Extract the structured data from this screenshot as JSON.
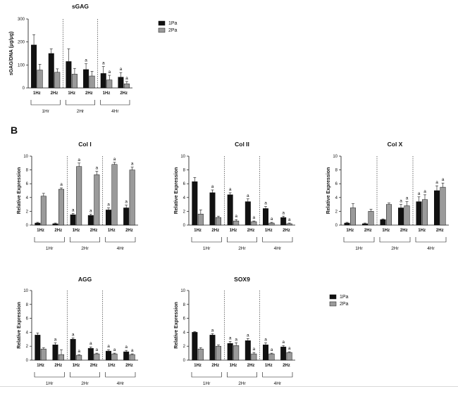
{
  "panel_b_label": "B",
  "legend": [
    {
      "label": "1Pa",
      "color": "#111111"
    },
    {
      "label": "2Pa",
      "color": "#9a9a9a"
    }
  ],
  "chart_data": [
    {
      "id": "sgag",
      "type": "bar",
      "title": "sGAG",
      "ylabel": "sGAG/DNA (μg/μg)",
      "ylim": [
        0,
        300
      ],
      "yticks": [
        0,
        100,
        200,
        300
      ],
      "categories": [
        "1Hz",
        "2Hz",
        "1Hz",
        "2Hz",
        "1Hz",
        "2Hz"
      ],
      "groups": [
        "1Hr",
        "2Hr",
        "4Hr"
      ],
      "series": [
        {
          "name": "1Pa",
          "values": [
            187,
            150,
            115,
            80,
            63,
            47
          ],
          "errors": [
            45,
            20,
            55,
            25,
            30,
            20
          ]
        },
        {
          "name": "2Pa",
          "values": [
            78,
            68,
            60,
            52,
            35,
            18
          ],
          "errors": [
            25,
            15,
            25,
            20,
            20,
            10
          ]
        }
      ],
      "significance": [
        [
          "",
          "",
          "",
          "a",
          "a",
          "a"
        ],
        [
          "",
          "",
          "",
          "",
          "a",
          "a"
        ]
      ]
    },
    {
      "id": "col1",
      "type": "bar",
      "title": "Col I",
      "ylabel": "Relative Expression",
      "ylim": [
        0,
        10
      ],
      "yticks": [
        0,
        2,
        4,
        6,
        8,
        10
      ],
      "categories": [
        "1Hz",
        "2Hz",
        "1Hz",
        "2Hz",
        "1Hz",
        "2Hz"
      ],
      "groups": [
        "1Hr",
        "2Hr",
        "4Hr"
      ],
      "series": [
        {
          "name": "1Pa",
          "values": [
            0.3,
            0.2,
            1.5,
            1.4,
            2.2,
            2.5
          ],
          "errors": [
            0.1,
            0.1,
            0.2,
            0.2,
            0.3,
            0.4
          ]
        },
        {
          "name": "2Pa",
          "values": [
            4.2,
            5.2,
            8.5,
            7.3,
            8.8,
            8.0
          ],
          "errors": [
            0.4,
            0.2,
            0.5,
            0.5,
            0.3,
            0.4
          ]
        }
      ],
      "significance": [
        [
          "",
          "",
          "a",
          "a",
          "a",
          "a"
        ],
        [
          "",
          "a",
          "a",
          "a",
          "a",
          "a"
        ]
      ]
    },
    {
      "id": "col2",
      "type": "bar",
      "title": "Col II",
      "ylabel": "Relative Expression",
      "ylim": [
        0,
        10
      ],
      "yticks": [
        0,
        2,
        4,
        6,
        8,
        10
      ],
      "categories": [
        "1Hz",
        "2Hz",
        "1Hz",
        "2Hz",
        "1Hz",
        "2Hz"
      ],
      "groups": [
        "1Hr",
        "2Hr",
        "4Hr"
      ],
      "series": [
        {
          "name": "1Pa",
          "values": [
            6.3,
            4.7,
            4.4,
            3.4,
            2.4,
            1.1
          ],
          "errors": [
            0.6,
            0.4,
            0.3,
            0.4,
            0.3,
            0.2
          ]
        },
        {
          "name": "2Pa",
          "values": [
            1.6,
            1.1,
            0.6,
            0.5,
            0.3,
            0.2
          ],
          "errors": [
            0.6,
            0.2,
            0.2,
            0.1,
            0.1,
            0.1
          ]
        }
      ],
      "significance": [
        [
          "",
          "a",
          "a",
          "a",
          "a",
          "a"
        ],
        [
          "",
          "",
          "a",
          "a",
          "a",
          "a"
        ]
      ]
    },
    {
      "id": "colx",
      "type": "bar",
      "title": "Col X",
      "ylabel": "Relative Expression",
      "ylim": [
        0,
        10
      ],
      "yticks": [
        0,
        2,
        4,
        6,
        8,
        10
      ],
      "categories": [
        "1Hz",
        "2Hz",
        "1Hz",
        "2Hz",
        "1Hz",
        "2Hz"
      ],
      "groups": [
        "1Hr",
        "2Hr",
        "4Hr"
      ],
      "series": [
        {
          "name": "1Pa",
          "values": [
            0.3,
            0.2,
            0.8,
            2.5,
            3.4,
            5.0
          ],
          "errors": [
            0.1,
            0.1,
            0.1,
            0.5,
            0.7,
            0.7
          ]
        },
        {
          "name": "2Pa",
          "values": [
            2.5,
            2.0,
            3.0,
            2.8,
            3.7,
            5.5
          ],
          "errors": [
            0.6,
            0.3,
            0.2,
            0.6,
            0.7,
            0.6
          ]
        }
      ],
      "significance": [
        [
          "",
          "",
          "",
          "a",
          "a",
          "a"
        ],
        [
          "",
          "",
          "",
          "a",
          "a",
          "a"
        ]
      ]
    },
    {
      "id": "agg",
      "type": "bar",
      "title": "AGG",
      "ylabel": "Relative Expression",
      "ylim": [
        0,
        10
      ],
      "yticks": [
        0,
        2,
        4,
        6,
        8,
        10
      ],
      "categories": [
        "1Hz",
        "2Hz",
        "1Hz",
        "2Hz",
        "1Hz",
        "2Hz"
      ],
      "groups": [
        "1Hr",
        "2Hr",
        "4Hr"
      ],
      "series": [
        {
          "name": "1Pa",
          "values": [
            3.6,
            2.2,
            3.0,
            1.7,
            1.3,
            1.2
          ],
          "errors": [
            0.3,
            0.3,
            0.2,
            0.2,
            0.2,
            0.2
          ]
        },
        {
          "name": "2Pa",
          "values": [
            1.6,
            0.8,
            0.7,
            0.9,
            0.9,
            0.8
          ],
          "errors": [
            0.2,
            0.7,
            0.1,
            0.1,
            0.1,
            0.1
          ]
        }
      ],
      "significance": [
        [
          "",
          "a",
          "a",
          "a",
          "a",
          "a"
        ],
        [
          "",
          "",
          "a",
          "a",
          "a",
          "a"
        ]
      ]
    },
    {
      "id": "sox9",
      "type": "bar",
      "title": "SOX9",
      "ylabel": "Relative Expression",
      "ylim": [
        0,
        10
      ],
      "yticks": [
        0,
        2,
        4,
        6,
        8,
        10
      ],
      "categories": [
        "1Hz",
        "2Hz",
        "1Hz",
        "2Hz",
        "1Hz",
        "2Hz"
      ],
      "groups": [
        "1Hr",
        "2Hr",
        "4Hr"
      ],
      "series": [
        {
          "name": "1Pa",
          "values": [
            4.0,
            3.6,
            2.4,
            2.8,
            2.2,
            1.9
          ],
          "errors": [
            0.1,
            0.2,
            0.3,
            0.3,
            0.3,
            0.2
          ]
        },
        {
          "name": "2Pa",
          "values": [
            1.6,
            2.0,
            2.1,
            0.9,
            0.9,
            1.1
          ],
          "errors": [
            0.2,
            0.2,
            0.4,
            0.2,
            0.1,
            0.1
          ]
        }
      ],
      "significance": [
        [
          "",
          "a",
          "a",
          "a",
          "a",
          "a"
        ],
        [
          "",
          "",
          "a",
          "a",
          "a",
          "a"
        ]
      ]
    }
  ]
}
